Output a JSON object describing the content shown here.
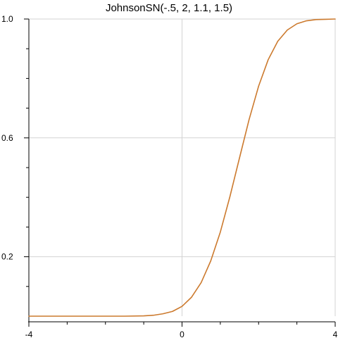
{
  "colors": {
    "curve": "#cc7a2e",
    "grid": "#d3d3d3",
    "axis": "#000000",
    "background": "#ffffff"
  },
  "chart_data": {
    "type": "line",
    "title": "JohnsonSN(-.5, 2, 1.1, 1.5)",
    "xlabel": "",
    "ylabel": "",
    "xlim": [
      -4,
      4
    ],
    "ylim": [
      0,
      1
    ],
    "grid": true,
    "x_ticks": [
      -4,
      0,
      4
    ],
    "x_tick_labels": [
      "-4",
      "0",
      "4"
    ],
    "x_minor_step": 1,
    "y_ticks": [
      0.2,
      0.6,
      1.0
    ],
    "y_tick_labels": [
      "0.2",
      "0.6",
      "1.0"
    ],
    "y_minor_step": 0.1,
    "series": [
      {
        "x": [
          -4,
          -3.5,
          -3,
          -2.5,
          -2,
          -1.5,
          -1,
          -0.75,
          -0.5,
          -0.25,
          0,
          0.25,
          0.5,
          0.75,
          1,
          1.25,
          1.5,
          1.75,
          2,
          2.25,
          2.5,
          2.75,
          3,
          3.25,
          3.5,
          3.75,
          4
        ],
        "y": [
          0,
          0,
          0,
          0,
          0,
          0,
          0.001,
          0.003,
          0.008,
          0.016,
          0.033,
          0.064,
          0.113,
          0.186,
          0.283,
          0.402,
          0.532,
          0.661,
          0.774,
          0.863,
          0.925,
          0.963,
          0.984,
          0.994,
          0.998,
          0.999,
          1.0
        ]
      }
    ]
  }
}
